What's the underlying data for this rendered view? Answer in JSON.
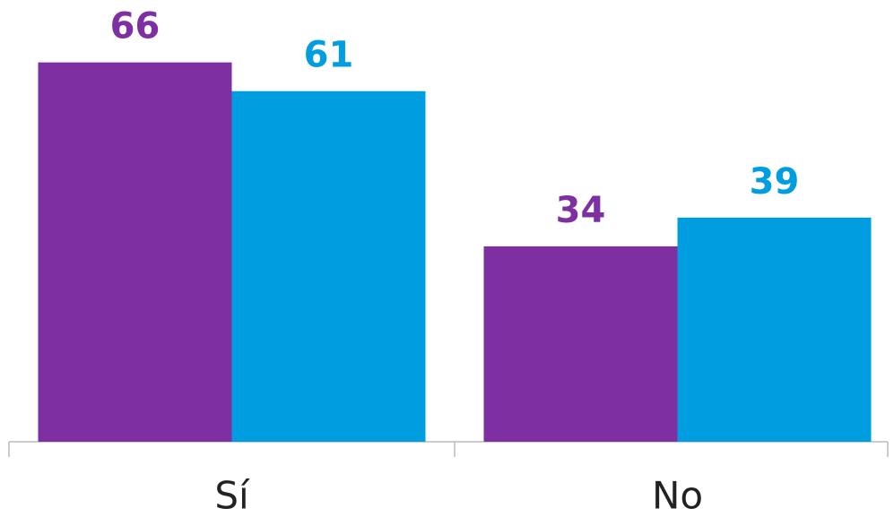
{
  "chart_data": {
    "type": "bar",
    "categories": [
      "Sí",
      "No"
    ],
    "series": [
      {
        "color": "#7e30a2",
        "values": [
          66,
          34
        ]
      },
      {
        "color": "#009ee0",
        "values": [
          61,
          39
        ]
      }
    ],
    "ylim": [
      0,
      70
    ]
  }
}
